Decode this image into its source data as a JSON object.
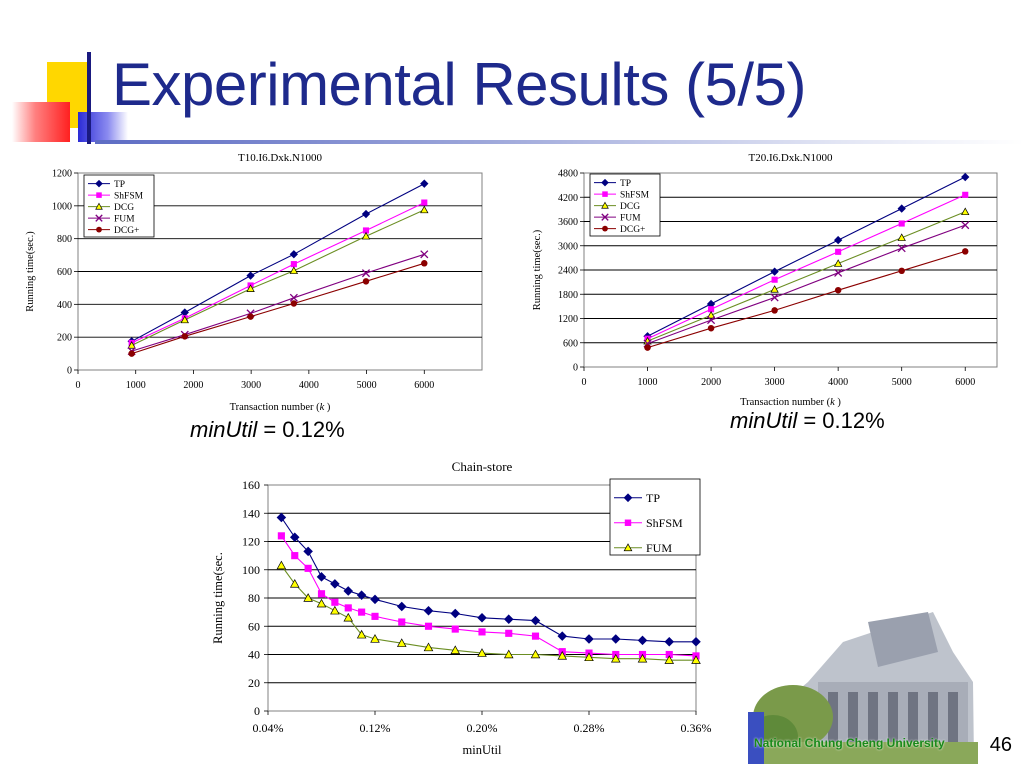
{
  "slide": {
    "title": "Experimental Results (5/5)",
    "slide_number": "46",
    "university_name": "National Chung Cheng University",
    "minutil_label_left_name": "minUtil",
    "minutil_label_left_value": " = 0.12%",
    "minutil_label_right_name": "minUtil",
    "minutil_label_right_value": " = 0.12%",
    "colors": {
      "title": "#1e2a8c",
      "accent_yellow": "#ffd700",
      "accent_red": "#ff3333",
      "accent_blue": "#2b2bd6"
    }
  },
  "chart_data": [
    {
      "type": "line",
      "title": "T10.I6.Dxk.N1000",
      "xlabel": "Transaction number (",
      "xlabel_k": "k",
      "xlabel_end": " )",
      "ylabel": "Running time(sec.)",
      "xlim": [
        0,
        7000
      ],
      "ylim": [
        0,
        1200
      ],
      "x_ticks": [
        0,
        1000,
        2000,
        3000,
        4000,
        5000,
        6000
      ],
      "y_ticks": [
        0,
        200,
        400,
        600,
        800,
        1000,
        1200
      ],
      "x_tick_labels": [
        "0",
        "1000",
        "2000",
        "3000",
        "4000",
        "5000",
        "6000"
      ],
      "y_tick_labels": [
        "0",
        "200",
        "400",
        "600",
        "800",
        "1000",
        "1200"
      ],
      "grid": true,
      "legend_position": "top-left",
      "x": [
        930,
        1850,
        2990,
        3740,
        4990,
        6000
      ],
      "series": [
        {
          "name": "TP",
          "color": "#000080",
          "marker": "diamond",
          "values": [
            175,
            350,
            575,
            705,
            950,
            1135
          ]
        },
        {
          "name": "ShFSM",
          "color": "#ff00ff",
          "marker": "square",
          "values": [
            165,
            315,
            515,
            645,
            850,
            1020
          ]
        },
        {
          "name": "DCG",
          "color": "#6b8e23",
          "marker": "triangle",
          "values": [
            150,
            305,
            495,
            605,
            815,
            975
          ]
        },
        {
          "name": "FUM",
          "color": "#800080",
          "marker": "x",
          "values": [
            115,
            215,
            345,
            440,
            590,
            705
          ]
        },
        {
          "name": "DCG+",
          "color": "#8b0000",
          "marker": "circle",
          "values": [
            100,
            205,
            325,
            405,
            540,
            650
          ]
        }
      ]
    },
    {
      "type": "line",
      "title": "T20.I6.Dxk.N1000",
      "xlabel": "Transaction number (",
      "xlabel_k": "k",
      "xlabel_end": " )",
      "ylabel": "Running time(sec.)",
      "xlim": [
        0,
        6500
      ],
      "ylim": [
        0,
        4800
      ],
      "x_ticks": [
        0,
        1000,
        2000,
        3000,
        4000,
        5000,
        6000
      ],
      "y_ticks": [
        0,
        600,
        1200,
        1800,
        2400,
        3000,
        3600,
        4200,
        4800
      ],
      "x_tick_labels": [
        "0",
        "1000",
        "2000",
        "3000",
        "4000",
        "5000",
        "6000"
      ],
      "y_tick_labels": [
        "0",
        "600",
        "1200",
        "1800",
        "2400",
        "3000",
        "3600",
        "4200",
        "4800"
      ],
      "grid": true,
      "legend_position": "top-left",
      "x": [
        1000,
        2000,
        3000,
        4000,
        5000,
        6000
      ],
      "series": [
        {
          "name": "TP",
          "color": "#000080",
          "marker": "diamond",
          "values": [
            760,
            1560,
            2360,
            3140,
            3920,
            4700
          ]
        },
        {
          "name": "ShFSM",
          "color": "#ff00ff",
          "marker": "square",
          "values": [
            700,
            1430,
            2160,
            2850,
            3550,
            4260
          ]
        },
        {
          "name": "DCG",
          "color": "#6b8e23",
          "marker": "triangle",
          "values": [
            640,
            1280,
            1920,
            2560,
            3200,
            3840
          ]
        },
        {
          "name": "FUM",
          "color": "#800080",
          "marker": "x",
          "values": [
            580,
            1160,
            1720,
            2330,
            2940,
            3510
          ]
        },
        {
          "name": "DCG+",
          "color": "#8b0000",
          "marker": "circle",
          "values": [
            480,
            960,
            1400,
            1900,
            2380,
            2860
          ]
        }
      ]
    },
    {
      "type": "line",
      "title": "Chain-store",
      "xlabel": "minUtil",
      "ylabel": "Running time(sec.",
      "xlim": [
        0.04,
        0.36
      ],
      "ylim": [
        0,
        160
      ],
      "x_ticks": [
        0.04,
        0.12,
        0.2,
        0.28,
        0.36
      ],
      "y_ticks": [
        0,
        20,
        40,
        60,
        80,
        100,
        120,
        140,
        160
      ],
      "x_tick_labels": [
        "0.04%",
        "0.12%",
        "0.20%",
        "0.28%",
        "0.36%"
      ],
      "y_tick_labels": [
        "0",
        "20",
        "40",
        "60",
        "80",
        "100",
        "120",
        "140",
        "160"
      ],
      "grid": true,
      "legend_position": "top-right",
      "x": [
        0.05,
        0.06,
        0.07,
        0.08,
        0.09,
        0.1,
        0.11,
        0.12,
        0.14,
        0.16,
        0.18,
        0.2,
        0.22,
        0.24,
        0.26,
        0.28,
        0.3,
        0.32,
        0.34,
        0.36
      ],
      "series": [
        {
          "name": "TP",
          "color": "#000080",
          "marker": "diamond",
          "values": [
            137,
            123,
            113,
            95,
            90,
            85,
            82,
            79,
            74,
            71,
            69,
            66,
            65,
            64,
            53,
            51,
            51,
            50,
            49,
            49
          ]
        },
        {
          "name": "ShFSM",
          "color": "#ff00ff",
          "marker": "square",
          "values": [
            124,
            110,
            101,
            83,
            77,
            73,
            70,
            67,
            63,
            60,
            58,
            56,
            55,
            53,
            42,
            41,
            40,
            40,
            40,
            39
          ]
        },
        {
          "name": "FUM",
          "color": "#6b8e23",
          "marker": "triangle",
          "values": [
            103,
            90,
            80,
            76,
            71,
            66,
            54,
            51,
            48,
            45,
            43,
            41,
            40,
            40,
            39,
            38,
            37,
            37,
            36,
            36
          ]
        }
      ]
    }
  ]
}
